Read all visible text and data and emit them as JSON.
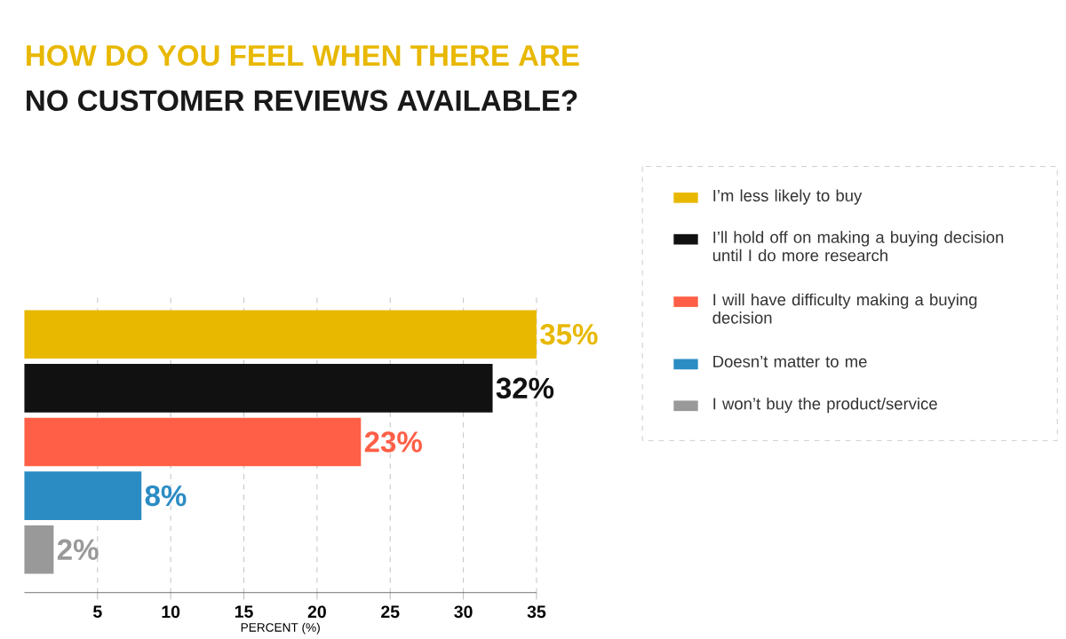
{
  "chart_data": {
    "type": "bar",
    "orientation": "horizontal",
    "title": "HOW DO YOU FEEL WHEN THERE ARE",
    "subtitle": "NO CUSTOMER REVIEWS AVAILABLE?",
    "xlabel": "PERCENT (%)",
    "categories": [
      null,
      null,
      null,
      null,
      null
    ],
    "series": [
      {
        "name": "I’m less likely to buy",
        "color": "#e8b800",
        "values": [
          35,
          null,
          null,
          null,
          null
        ],
        "value_labels": [
          "35%",
          null,
          null,
          null,
          null
        ]
      },
      {
        "name": "I’ll hold off on making a buying decision until I do more research",
        "color": "#111111",
        "values": [
          null,
          32,
          null,
          null,
          null
        ],
        "value_labels": [
          null,
          "32%",
          null,
          null,
          null
        ]
      },
      {
        "name": "I will have difficulty making a buying decision",
        "color": "#ff5f46",
        "values": [
          null,
          null,
          23,
          null,
          null
        ],
        "value_labels": [
          null,
          null,
          "23%",
          null,
          null
        ]
      },
      {
        "name": "Doesn’t matter to me",
        "color": "#2b8cc4",
        "values": [
          null,
          null,
          null,
          8,
          null
        ],
        "value_labels": [
          null,
          null,
          null,
          "8%",
          null
        ]
      },
      {
        "name": "I won’t buy the product/service",
        "color": "#999999",
        "values": [
          null,
          null,
          null,
          null,
          2
        ],
        "value_labels": [
          null,
          null,
          null,
          null,
          "2%"
        ]
      }
    ],
    "xlim": [
      0,
      35
    ],
    "xticks": [
      5,
      10,
      15,
      20,
      25,
      30,
      35
    ],
    "grid": "x",
    "legend": "right"
  }
}
